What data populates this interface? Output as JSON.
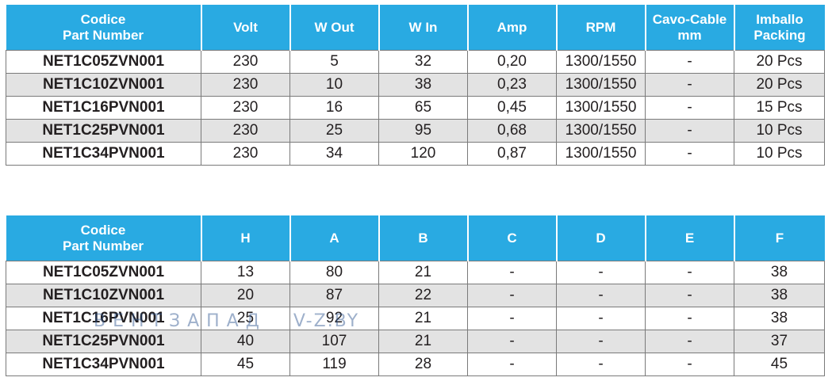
{
  "table1": {
    "headers": [
      [
        "Codice",
        "Part Number"
      ],
      [
        "Volt"
      ],
      [
        "W Out"
      ],
      [
        "W In"
      ],
      [
        "Amp"
      ],
      [
        "RPM"
      ],
      [
        "Cavo-Cable",
        "mm"
      ],
      [
        "Imballo",
        "Packing"
      ]
    ],
    "rows": [
      [
        "NET1C05ZVN001",
        "230",
        "5",
        "32",
        "0,20",
        "1300/1550",
        "-",
        "20 Pcs"
      ],
      [
        "NET1C10ZVN001",
        "230",
        "10",
        "38",
        "0,23",
        "1300/1550",
        "-",
        "20 Pcs"
      ],
      [
        "NET1C16PVN001",
        "230",
        "16",
        "65",
        "0,45",
        "1300/1550",
        "-",
        "15 Pcs"
      ],
      [
        "NET1C25PVN001",
        "230",
        "25",
        "95",
        "0,68",
        "1300/1550",
        "-",
        "10 Pcs"
      ],
      [
        "NET1C34PVN001",
        "230",
        "34",
        "120",
        "0,87",
        "1300/1550",
        "-",
        "10 Pcs"
      ]
    ]
  },
  "table2": {
    "headers": [
      [
        "Codice",
        "Part Number"
      ],
      [
        "H"
      ],
      [
        "A"
      ],
      [
        "B"
      ],
      [
        "C"
      ],
      [
        "D"
      ],
      [
        "E"
      ],
      [
        "F"
      ]
    ],
    "rows": [
      [
        "NET1C05ZVN001",
        "13",
        "80",
        "21",
        "-",
        "-",
        "-",
        "38"
      ],
      [
        "NET1C10ZVN001",
        "20",
        "87",
        "22",
        "-",
        "-",
        "-",
        "38"
      ],
      [
        "NET1C16PVN001",
        "25",
        "92",
        "21",
        "-",
        "-",
        "-",
        "38"
      ],
      [
        "NET1C25PVN001",
        "40",
        "107",
        "21",
        "-",
        "-",
        "-",
        "37"
      ],
      [
        "NET1C34PVN001",
        "45",
        "119",
        "28",
        "-",
        "-",
        "-",
        "45"
      ]
    ]
  },
  "watermark": {
    "brand": "ВЕНТЗАПАД",
    "site": "V-Z.BY"
  },
  "colors": {
    "header_bg": "#29aae2",
    "stripe": "#e3e3e3"
  }
}
